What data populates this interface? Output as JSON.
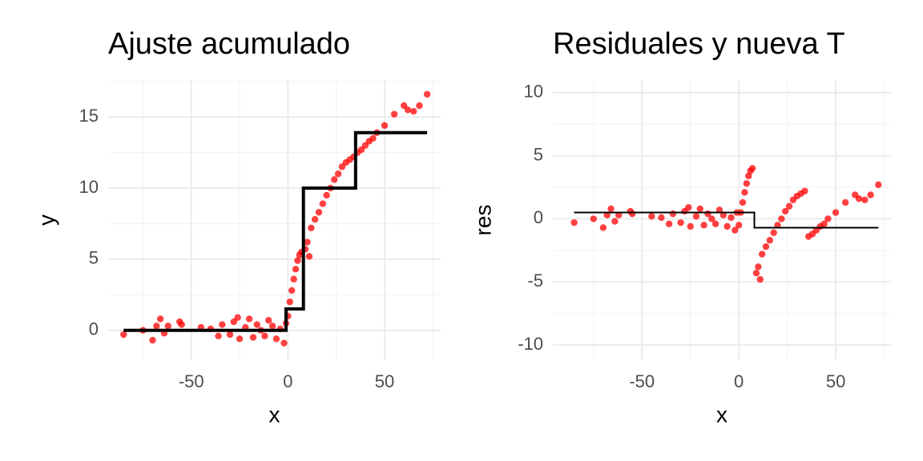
{
  "chart_data": [
    {
      "type": "scatter",
      "title": "Ajuste acumulado",
      "x_label": "x",
      "y_label": "y",
      "xlim": [
        -93,
        79
      ],
      "ylim": [
        -2.1,
        17.6
      ],
      "xticks": [
        -50,
        0,
        50
      ],
      "yticks": [
        0,
        5,
        10,
        15
      ],
      "x_minor_grid": [
        -75,
        -25,
        25,
        75
      ],
      "y_minor_grid": [
        2.5,
        7.5,
        12.5,
        17.5
      ],
      "grid": true,
      "points": {
        "color": "#ff0000",
        "x": [
          -85,
          -75,
          -70,
          -68,
          -66,
          -64,
          -62,
          -56,
          -55,
          -45,
          -40,
          -36,
          -34,
          -30,
          -28,
          -26,
          -25,
          -22,
          -20,
          -18,
          -16,
          -14,
          -12,
          -10,
          -8,
          -6,
          -4,
          -2,
          -1,
          0,
          1,
          2,
          3,
          4,
          5,
          6,
          7,
          9,
          10,
          11,
          12,
          14,
          16,
          18,
          20,
          22,
          24,
          26,
          28,
          30,
          32,
          34,
          36,
          38,
          40,
          42,
          44,
          46,
          50,
          55,
          60,
          62,
          65,
          68,
          72
        ],
        "y": [
          -0.3,
          0,
          -0.7,
          0.3,
          0.8,
          -0.2,
          0.3,
          0.6,
          0.4,
          0.2,
          0.1,
          -0.4,
          0.4,
          -0.3,
          0.6,
          0.9,
          -0.6,
          0.2,
          0.8,
          -0.5,
          0.4,
          0,
          -0.4,
          0.7,
          0.3,
          -0.6,
          0.1,
          -0.9,
          0.5,
          1.0,
          2.0,
          2.8,
          3.6,
          4.3,
          4.9,
          5.3,
          5.5,
          5.7,
          6.2,
          5.2,
          7.2,
          7.8,
          8.3,
          8.9,
          9.5,
          10.0,
          10.6,
          11.0,
          11.5,
          11.8,
          12.0,
          12.2,
          12.5,
          12.7,
          13.0,
          13.3,
          13.5,
          13.9,
          14.4,
          15.2,
          15.8,
          15.5,
          15.4,
          15.8,
          16.6
        ]
      },
      "line": {
        "color": "#000000",
        "width": 4,
        "x": [
          -85,
          -1,
          -1,
          8,
          8,
          35,
          35,
          72
        ],
        "y": [
          0,
          0,
          1.5,
          1.5,
          10,
          10,
          13.9,
          13.9
        ]
      }
    },
    {
      "type": "scatter",
      "title": "Residuales y nueva T",
      "x_label": "x",
      "y_label": "res",
      "xlim": [
        -96,
        78.5
      ],
      "ylim": [
        -11.2,
        11
      ],
      "xticks": [
        -50,
        0,
        50
      ],
      "yticks": [
        -10,
        -5,
        0,
        5,
        10
      ],
      "x_minor_grid": [
        -75,
        -25,
        25,
        75
      ],
      "y_minor_grid": [
        -7.5,
        -2.5,
        2.5,
        7.5
      ],
      "grid": true,
      "points": {
        "color": "#ff0000",
        "x": [
          -85,
          -75,
          -70,
          -68,
          -66,
          -64,
          -62,
          -56,
          -55,
          -45,
          -40,
          -36,
          -34,
          -30,
          -28,
          -26,
          -25,
          -22,
          -20,
          -18,
          -16,
          -14,
          -12,
          -10,
          -8,
          -6,
          -4,
          -2,
          -1,
          0,
          1,
          2,
          3,
          4,
          5,
          6,
          7,
          9,
          10,
          11,
          12,
          14,
          16,
          18,
          20,
          22,
          24,
          26,
          28,
          30,
          32,
          34,
          36,
          38,
          40,
          42,
          44,
          46,
          50,
          55,
          60,
          62,
          65,
          68,
          72
        ],
        "y": [
          -0.3,
          0,
          -0.7,
          0.3,
          0.8,
          -0.2,
          0.3,
          0.6,
          0.4,
          0.2,
          0.1,
          -0.4,
          0.4,
          -0.3,
          0.6,
          0.9,
          -0.6,
          0.2,
          0.8,
          -0.5,
          0.4,
          0,
          -0.4,
          0.7,
          0.3,
          -0.6,
          0.1,
          -0.9,
          0.5,
          -0.5,
          0.5,
          1.3,
          2.1,
          2.8,
          3.4,
          3.8,
          4.0,
          -4.3,
          -3.8,
          -4.8,
          -2.8,
          -2.2,
          -1.7,
          -1.1,
          -0.5,
          0,
          0.6,
          1.0,
          1.5,
          1.8,
          2.0,
          2.2,
          -1.4,
          -1.2,
          -0.9,
          -0.6,
          -0.4,
          0,
          0.5,
          1.3,
          1.9,
          1.6,
          1.5,
          1.9,
          2.7
        ]
      },
      "line": {
        "color": "#000000",
        "width": 2,
        "x": [
          -85,
          8,
          8,
          72
        ],
        "y": [
          0.5,
          0.5,
          -0.7,
          -0.7
        ]
      }
    }
  ]
}
